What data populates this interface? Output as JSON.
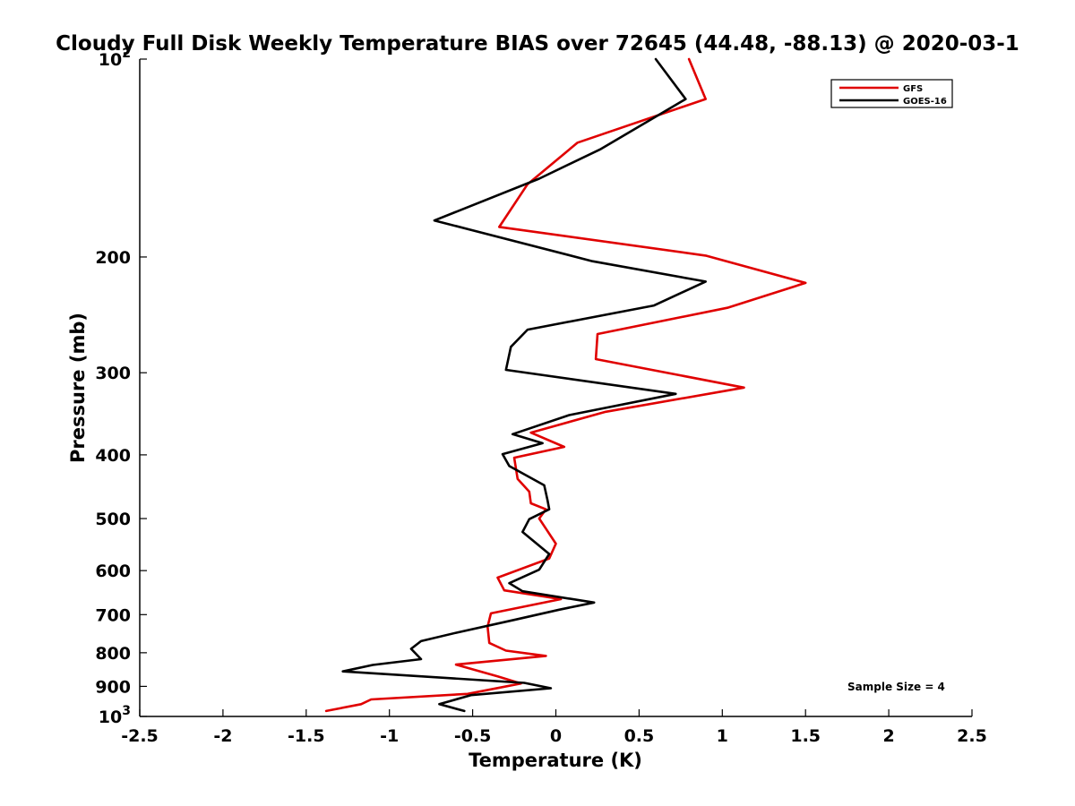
{
  "chart_data": {
    "type": "line",
    "title": "Cloudy Full Disk Weekly Temperature BIAS over 72645 (44.48, -88.13) @ 2020-03-1",
    "xlabel": "Temperature (K)",
    "ylabel": "Pressure (mb)",
    "xlim": [
      -2.5,
      2.5
    ],
    "ylim": [
      100,
      1000
    ],
    "y_scale": "log",
    "y_reversed": true,
    "grid": false,
    "legend_position": "top-right",
    "x_ticks": [
      "-2.5",
      "-2",
      "-1.5",
      "-1",
      "-0.5",
      "0",
      "0.5",
      "1",
      "1.5",
      "2",
      "2.5"
    ],
    "y_ticks": [
      {
        "value": 100,
        "label": "10",
        "sup": "2"
      },
      {
        "value": 200,
        "label": "200"
      },
      {
        "value": 300,
        "label": "300"
      },
      {
        "value": 400,
        "label": "400"
      },
      {
        "value": 500,
        "label": "500"
      },
      {
        "value": 600,
        "label": "600"
      },
      {
        "value": 700,
        "label": "700"
      },
      {
        "value": 800,
        "label": "800"
      },
      {
        "value": 900,
        "label": "900"
      },
      {
        "value": 1000,
        "label": "10",
        "sup": "3"
      }
    ],
    "annotation": "Sample Size = 4",
    "series": [
      {
        "name": "GFS",
        "color": "#e00000",
        "points": [
          [
            0.8,
            100
          ],
          [
            0.9,
            115
          ],
          [
            0.13,
            134
          ],
          [
            -0.17,
            155
          ],
          [
            -0.34,
            180
          ],
          [
            0.9,
            199
          ],
          [
            1.5,
            219
          ],
          [
            1.03,
            239
          ],
          [
            0.25,
            262
          ],
          [
            0.24,
            286
          ],
          [
            1.13,
            316
          ],
          [
            0.3,
            344
          ],
          [
            -0.15,
            370
          ],
          [
            0.05,
            389
          ],
          [
            -0.25,
            404
          ],
          [
            -0.23,
            435
          ],
          [
            -0.16,
            455
          ],
          [
            -0.15,
            474
          ],
          [
            -0.06,
            484
          ],
          [
            -0.1,
            500
          ],
          [
            -0.06,
            518
          ],
          [
            0.0,
            546
          ],
          [
            -0.04,
            575
          ],
          [
            -0.35,
            615
          ],
          [
            -0.31,
            643
          ],
          [
            0.03,
            663
          ],
          [
            -0.39,
            697
          ],
          [
            -0.41,
            730
          ],
          [
            -0.4,
            773
          ],
          [
            -0.3,
            794
          ],
          [
            -0.06,
            809
          ],
          [
            -0.6,
            834
          ],
          [
            -0.35,
            869
          ],
          [
            -0.21,
            891
          ],
          [
            -0.53,
            924
          ],
          [
            -1.11,
            942
          ],
          [
            -1.17,
            958
          ],
          [
            -1.38,
            981
          ]
        ]
      },
      {
        "name": "GOES-16",
        "color": "#000000",
        "points": [
          [
            0.6,
            100
          ],
          [
            0.78,
            115
          ],
          [
            0.27,
            137
          ],
          [
            -0.1,
            152
          ],
          [
            -0.73,
            176
          ],
          [
            0.22,
            203
          ],
          [
            0.9,
            218
          ],
          [
            0.59,
            237
          ],
          [
            -0.17,
            258
          ],
          [
            -0.27,
            274
          ],
          [
            -0.3,
            297
          ],
          [
            0.72,
            323
          ],
          [
            0.08,
            348
          ],
          [
            -0.26,
            372
          ],
          [
            -0.08,
            384
          ],
          [
            -0.32,
            399
          ],
          [
            -0.28,
            416
          ],
          [
            -0.07,
            445
          ],
          [
            -0.05,
            469
          ],
          [
            -0.04,
            484
          ],
          [
            -0.16,
            501
          ],
          [
            -0.2,
            524
          ],
          [
            -0.04,
            566
          ],
          [
            -0.1,
            598
          ],
          [
            -0.28,
            627
          ],
          [
            -0.2,
            645
          ],
          [
            0.23,
            671
          ],
          [
            0.02,
            688
          ],
          [
            -0.25,
            713
          ],
          [
            -0.6,
            746
          ],
          [
            -0.81,
            768
          ],
          [
            -0.87,
            789
          ],
          [
            -0.81,
            818
          ],
          [
            -1.1,
            835
          ],
          [
            -1.28,
            854
          ],
          [
            -0.19,
            889
          ],
          [
            -0.03,
            906
          ],
          [
            -0.51,
            928
          ],
          [
            -0.7,
            958
          ],
          [
            -0.55,
            981
          ]
        ]
      }
    ]
  }
}
